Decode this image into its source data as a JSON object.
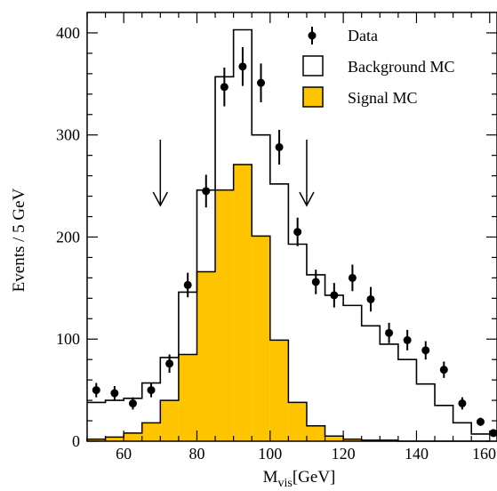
{
  "chart_data": {
    "type": "histogram",
    "xlabel": "M",
    "xlabel_sub": "vis",
    "xlabel_unit": "[GeV]",
    "ylabel": "Events / 5 GeV",
    "xlim": [
      50,
      162
    ],
    "ylim": [
      0,
      420
    ],
    "bin_width": 5,
    "bin_edges": [
      50,
      55,
      60,
      65,
      70,
      75,
      80,
      85,
      90,
      95,
      100,
      105,
      110,
      115,
      120,
      125,
      130,
      135,
      140,
      145,
      150,
      155,
      160
    ],
    "x_ticks": [
      60,
      80,
      100,
      120,
      140,
      160
    ],
    "x_tick_labels": [
      "60",
      "80",
      "100",
      "120",
      "140",
      "160"
    ],
    "y_ticks": [
      0,
      100,
      200,
      300,
      400
    ],
    "y_tick_labels": [
      "0",
      "100",
      "200",
      "300",
      "400"
    ],
    "series": [
      {
        "name": "Background MC",
        "style": "step-outline",
        "color": "#000000",
        "values": [
          38,
          40,
          42,
          57,
          82,
          146,
          246,
          357,
          403,
          300,
          252,
          193,
          163,
          143,
          133,
          113,
          95,
          80,
          56,
          35,
          18,
          7
        ]
      },
      {
        "name": "Signal MC",
        "style": "filled-step",
        "color": "#FFC400",
        "values": [
          2,
          4,
          8,
          18,
          40,
          85,
          166,
          246,
          271,
          201,
          99,
          38,
          15,
          5,
          2,
          1,
          1,
          0,
          0,
          0,
          0,
          0
        ]
      },
      {
        "name": "Data",
        "style": "points-with-errors",
        "color": "#000000",
        "x": [
          52.5,
          57.5,
          62.5,
          67.5,
          72.5,
          77.5,
          82.5,
          87.5,
          92.5,
          97.5,
          102.5,
          107.5,
          112.5,
          117.5,
          122.5,
          127.5,
          132.5,
          137.5,
          142.5,
          147.5,
          152.5,
          157.5,
          162
        ],
        "y": [
          50,
          47,
          37,
          50,
          76,
          153,
          245,
          347,
          367,
          351,
          288,
          205,
          156,
          143,
          160,
          139,
          106,
          99,
          89,
          70,
          37,
          19,
          8
        ],
        "err": [
          7,
          7,
          6,
          7,
          9,
          12,
          16,
          19,
          19,
          19,
          17,
          14,
          12,
          12,
          13,
          12,
          10,
          10,
          9,
          8,
          6,
          4,
          3
        ]
      }
    ],
    "arrows_at_x": [
      70,
      110
    ],
    "legend_position": "top-right",
    "legend": [
      {
        "label": "Data",
        "marker": "point"
      },
      {
        "label": "Background MC",
        "marker": "open-box"
      },
      {
        "label": "Signal MC",
        "marker": "filled-box"
      }
    ]
  }
}
